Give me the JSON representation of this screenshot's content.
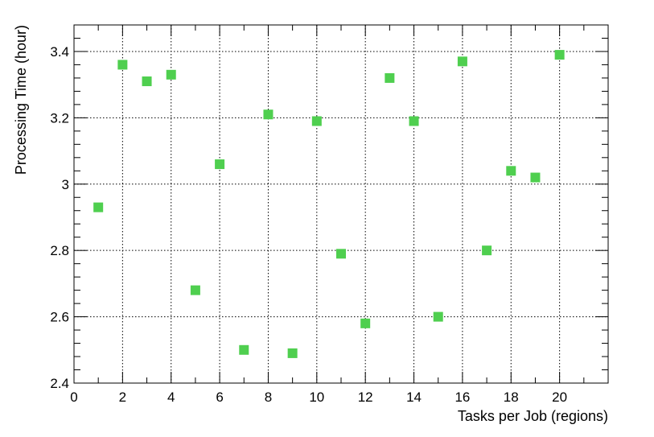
{
  "chart_data": {
    "type": "scatter",
    "xlabel": "Tasks per Job (regions)",
    "ylabel": "Processing Time (hour)",
    "xlim": [
      0,
      22
    ],
    "ylim": [
      2.4,
      3.48
    ],
    "x_ticks": [
      0,
      2,
      4,
      6,
      8,
      10,
      12,
      14,
      16,
      18,
      20
    ],
    "y_ticks": [
      2.4,
      2.6,
      2.8,
      3,
      3.2,
      3.4
    ],
    "x_tick_labels": [
      "0",
      "2",
      "4",
      "6",
      "8",
      "10",
      "12",
      "14",
      "16",
      "18",
      "20"
    ],
    "y_tick_labels": [
      "2.4",
      "2.6",
      "2.8",
      "3",
      "3.2",
      "3.4"
    ],
    "grid": true,
    "marker_color": "#4fcf4f",
    "marker": "square",
    "series": [
      {
        "x": [
          1,
          2,
          3,
          4,
          5,
          6,
          7,
          8,
          9,
          10,
          11,
          12,
          13,
          14,
          15,
          16,
          17,
          18,
          19,
          20
        ],
        "y": [
          2.93,
          3.36,
          3.31,
          3.33,
          2.68,
          3.06,
          2.5,
          3.21,
          2.49,
          3.19,
          2.79,
          2.58,
          3.32,
          3.19,
          2.6,
          3.37,
          2.8,
          3.04,
          3.02,
          3.39
        ]
      }
    ]
  }
}
